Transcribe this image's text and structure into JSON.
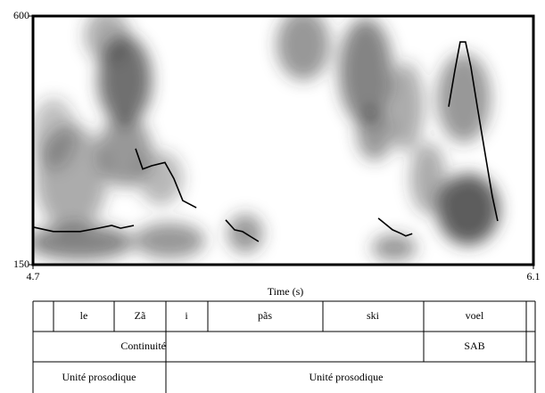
{
  "chart_data": {
    "type": "line",
    "x_label": "Time (s)",
    "x": [
      4.7,
      4.757,
      4.832,
      4.882,
      4.92,
      4.945,
      4.982,
      null,
      4.987,
      5.007,
      5.032,
      5.069,
      5.094,
      5.119,
      5.157,
      null,
      5.239,
      5.264,
      5.286,
      5.311,
      5.331,
      null,
      5.666,
      5.706,
      5.731,
      5.743,
      5.761,
      null,
      5.863,
      5.88,
      5.895,
      5.91,
      5.925,
      5.943,
      5.968,
      5.985,
      6.0
    ],
    "values": [
      218,
      210,
      210,
      216,
      221,
      216,
      221,
      null,
      360,
      323,
      329,
      335,
      306,
      266,
      253,
      null,
      231,
      213,
      210,
      200,
      192,
      null,
      234,
      213,
      206,
      202,
      206,
      null,
      436,
      500,
      553,
      553,
      508,
      436,
      339,
      274,
      229
    ],
    "color": "#000000",
    "xlim": [
      4.7,
      6.1
    ],
    "xticks": [
      4.7,
      6.1
    ],
    "ylim": [
      150,
      600
    ],
    "yticks": [
      150,
      600
    ]
  },
  "textgrid": {
    "tier1": [
      "le",
      "Zã",
      "i",
      "pãs",
      "ski",
      "voel"
    ],
    "tier2": [
      "Continuité",
      "SAB"
    ],
    "tier3": [
      "Unité prosodique",
      "Unité prosodique"
    ]
  }
}
